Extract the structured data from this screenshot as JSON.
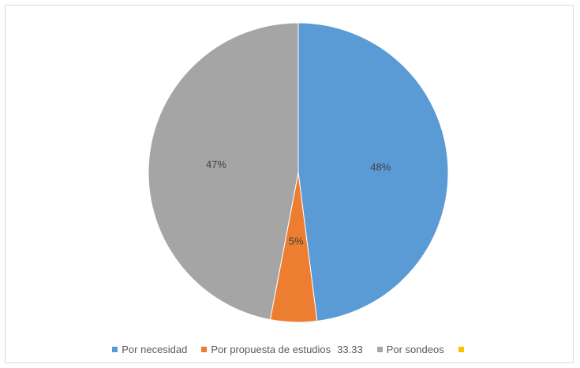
{
  "chart_data": {
    "type": "pie",
    "title": "",
    "slices": [
      {
        "name": "Por necesidad",
        "value": 48,
        "label": "48%",
        "color": "#5b9bd5"
      },
      {
        "name": "Por propuesta de estudios",
        "value": 5,
        "label": "5%",
        "color": "#ed7d31"
      },
      {
        "name": "Por sondeos",
        "value": 47,
        "label": "47%",
        "color": "#a5a5a5"
      }
    ],
    "legend": {
      "position": "bottom",
      "items": [
        {
          "label": "Por necesidad",
          "color": "#5b9bd5"
        },
        {
          "label": "Por propuesta de estudios",
          "extra": "33.33",
          "color": "#ed7d31"
        },
        {
          "label": "Por sondeos",
          "color": "#a5a5a5"
        },
        {
          "label": "",
          "color": "#ffc000"
        }
      ]
    }
  }
}
